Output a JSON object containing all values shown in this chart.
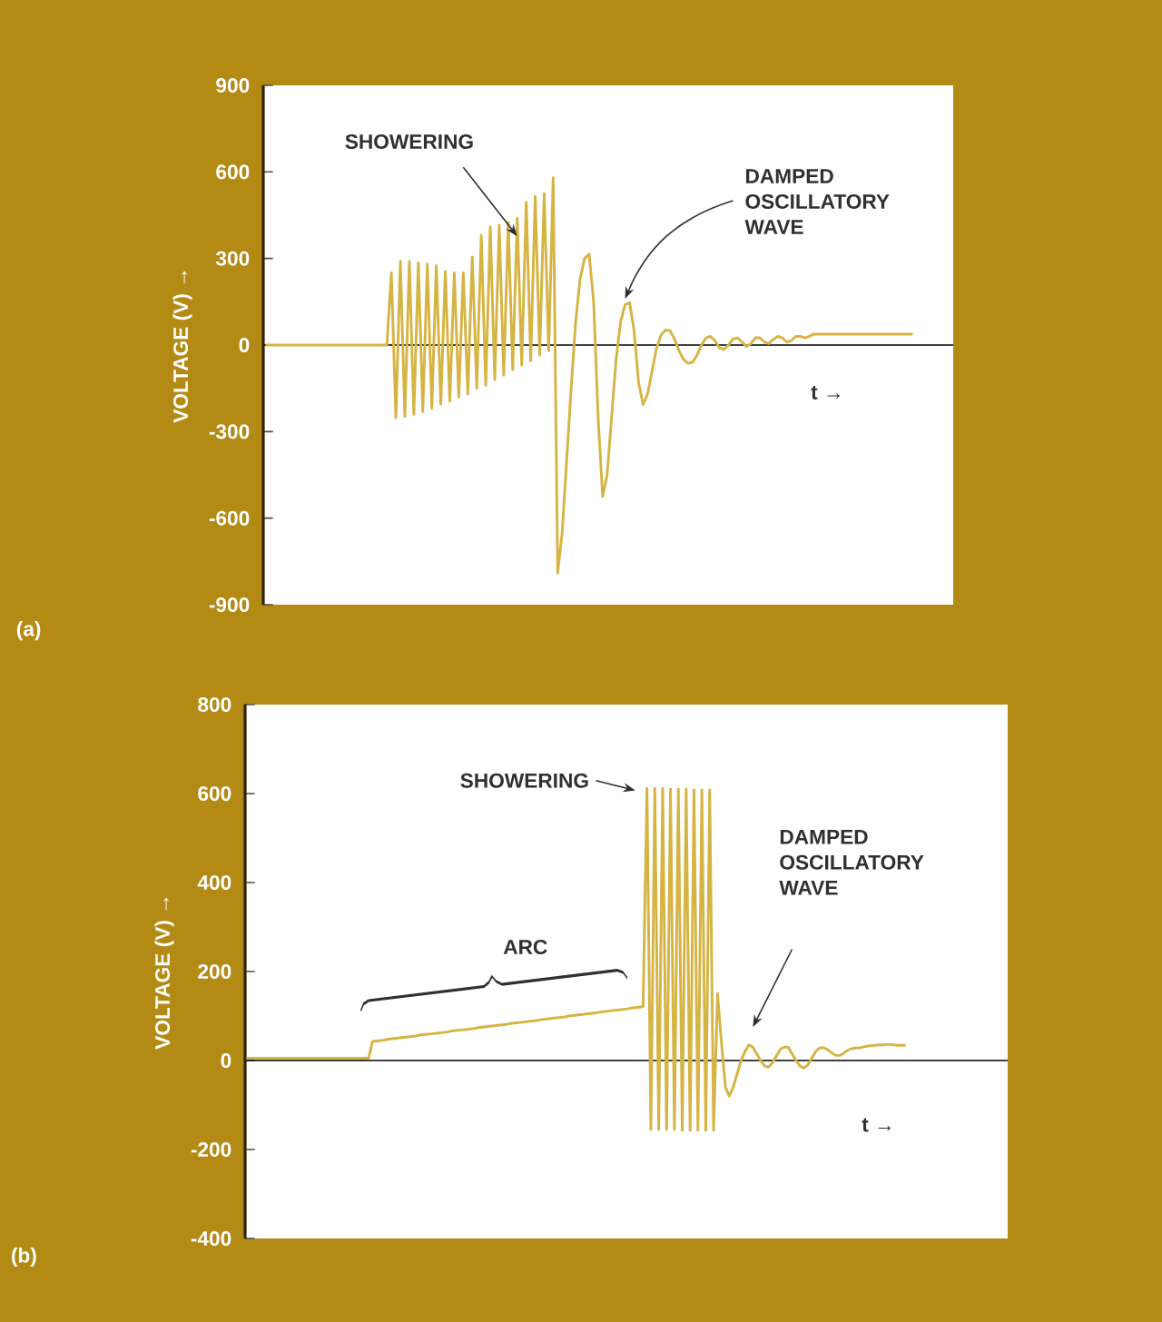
{
  "chart_data": [
    {
      "type": "line",
      "ylabel": "VOLTAGE (V) →",
      "ylim": [
        -900,
        900
      ],
      "yticks": [
        -900,
        -600,
        -300,
        0,
        300,
        600,
        900
      ],
      "tick_labels": "y",
      "marker": "none",
      "line_style": "solid",
      "annotations": [
        "SHOWERING",
        "DAMPED OSCILLATORY WAVE",
        "t →",
        "(a)"
      ],
      "categories": [
        null,
        null,
        null,
        null,
        null,
        null,
        null,
        null,
        null,
        null,
        null,
        null,
        null,
        null,
        null,
        null,
        null,
        null,
        null,
        null,
        null,
        null,
        null,
        null,
        null,
        null,
        null,
        null,
        null,
        null,
        null,
        null,
        null,
        null,
        null,
        null,
        null,
        null,
        null,
        null,
        null,
        null,
        null,
        null,
        null,
        null,
        null,
        null,
        null,
        null,
        null,
        null,
        null,
        null,
        null,
        null,
        null,
        null,
        null,
        null,
        null,
        null,
        null,
        null,
        null,
        null,
        null,
        null,
        null,
        null,
        null,
        null,
        null,
        null,
        null,
        null,
        null,
        null,
        null,
        null,
        null,
        null,
        null,
        null,
        null,
        null,
        null,
        null,
        null,
        null,
        null,
        null,
        null,
        null,
        null,
        null,
        null,
        null,
        null,
        null,
        null,
        null,
        null,
        null,
        null,
        null,
        null,
        null,
        null,
        null,
        null,
        null,
        null,
        null,
        null,
        null,
        null,
        null,
        null,
        null,
        null,
        null,
        null,
        null,
        null,
        null,
        null,
        null,
        null,
        null,
        null,
        null,
        null,
        null,
        null,
        null,
        null,
        null,
        null,
        null,
        null,
        null,
        null,
        null,
        null
      ],
      "series": [
        {
          "color": "#d6b443",
          "values": [
            0,
            0,
            0,
            0,
            0,
            0,
            0,
            0,
            0,
            0,
            0,
            0,
            0,
            0,
            0,
            0,
            0,
            0,
            0,
            0,
            0,
            0,
            0,
            0,
            0,
            0,
            0,
            0,
            250,
            -252,
            290,
            -248,
            290,
            -240,
            285,
            -231,
            280,
            -220,
            275,
            -205,
            255,
            -195,
            250,
            -180,
            250,
            -170,
            305,
            -150,
            380,
            -140,
            410,
            -120,
            415,
            -105,
            425,
            -85,
            440,
            -70,
            495,
            -55,
            515,
            -35,
            525,
            -20,
            580,
            -790,
            -650,
            -400,
            -150,
            80,
            230,
            300,
            315,
            150,
            -250,
            -525,
            -450,
            -250,
            -50,
            80,
            140,
            147,
            50,
            -130,
            -206,
            -170,
            -90,
            -10,
            35,
            52,
            50,
            20,
            -20,
            -50,
            -63,
            -60,
            -35,
            0,
            25,
            30,
            15,
            -10,
            -15,
            0,
            20,
            25,
            10,
            -5,
            5,
            25,
            25,
            10,
            5,
            20,
            30,
            25,
            10,
            15,
            30,
            30,
            25,
            30,
            38,
            38,
            38,
            38,
            38,
            38,
            38,
            38,
            38,
            38,
            38,
            38,
            38,
            38,
            38,
            38,
            38,
            38,
            38,
            38,
            38,
            38,
            38
          ]
        }
      ]
    },
    {
      "type": "line",
      "ylabel": "VOLTAGE (V) →",
      "ylim": [
        -400,
        800
      ],
      "yticks": [
        -400,
        -200,
        0,
        200,
        400,
        600,
        800
      ],
      "tick_labels": "y",
      "marker": "none",
      "line_style": "solid",
      "annotations": [
        "SHOWERING",
        "ARC",
        "DAMPED OSCILLATORY WAVE",
        "t →",
        "(b)"
      ],
      "categories": [
        null,
        null,
        null,
        null,
        null,
        null,
        null,
        null,
        null,
        null,
        null,
        null,
        null,
        null,
        null,
        null,
        null,
        null,
        null,
        null,
        null,
        null,
        null,
        null,
        null,
        null,
        null,
        null,
        null,
        null,
        null,
        null,
        null,
        null,
        null,
        null,
        null,
        null,
        null,
        null,
        null,
        null,
        null,
        null,
        null,
        null,
        null,
        null,
        null,
        null,
        null,
        null,
        null,
        null,
        null,
        null,
        null,
        null,
        null,
        null,
        null,
        null,
        null,
        null,
        null,
        null,
        null,
        null,
        null,
        null,
        null,
        null,
        null,
        null,
        null,
        null,
        null,
        null,
        null,
        null,
        null,
        null,
        null,
        null,
        null,
        null,
        null,
        null,
        null,
        null,
        null,
        null,
        null,
        null,
        null,
        null,
        null,
        null,
        null,
        null,
        null,
        null,
        null,
        null,
        null,
        null,
        null,
        null,
        null,
        null,
        null,
        null,
        null,
        null,
        null,
        null,
        null,
        null,
        null,
        null,
        null,
        null,
        null,
        null,
        null,
        null,
        null,
        null,
        null,
        null,
        null,
        null,
        null,
        null,
        null,
        null,
        null,
        null,
        null,
        null,
        null,
        null,
        null,
        null,
        null,
        null,
        null,
        null,
        null,
        null,
        null,
        null,
        null,
        null,
        null,
        null,
        null,
        null,
        null,
        null,
        null,
        null,
        null,
        null,
        null,
        null,
        null,
        null,
        null
      ],
      "series": [
        {
          "color": "#d6b443",
          "values": [
            5,
            5,
            5,
            5,
            5,
            5,
            5,
            5,
            5,
            5,
            5,
            5,
            5,
            5,
            5,
            5,
            5,
            5,
            5,
            5,
            5,
            5,
            5,
            5,
            5,
            5,
            5,
            5,
            5,
            5,
            5,
            5,
            43,
            44,
            45,
            46,
            48,
            49,
            50,
            51,
            52,
            53,
            54,
            55,
            57,
            58,
            59,
            60,
            61,
            62,
            63,
            64,
            66,
            67,
            68,
            69,
            70,
            71,
            72,
            74,
            75,
            76,
            77,
            78,
            79,
            80,
            81,
            83,
            84,
            85,
            86,
            87,
            88,
            89,
            90,
            92,
            93,
            94,
            95,
            96,
            97,
            98,
            100,
            101,
            102,
            103,
            104,
            105,
            106,
            107,
            109,
            110,
            111,
            112,
            113,
            114,
            115,
            116,
            118,
            119,
            120,
            121,
            612,
            -155,
            612,
            -155,
            612,
            -155,
            610,
            -155,
            610,
            -157,
            610,
            -157,
            608,
            -157,
            608,
            -157,
            608,
            -157,
            150,
            40,
            -60,
            -80,
            -60,
            -30,
            0,
            20,
            35,
            30,
            15,
            0,
            -12,
            -15,
            -5,
            10,
            25,
            30,
            30,
            15,
            0,
            -12,
            -17,
            -10,
            5,
            20,
            28,
            29,
            25,
            18,
            12,
            11,
            15,
            22,
            26,
            28,
            28,
            30,
            32,
            33,
            34,
            35,
            35,
            36,
            36,
            35,
            34,
            34,
            34
          ]
        }
      ]
    }
  ]
}
